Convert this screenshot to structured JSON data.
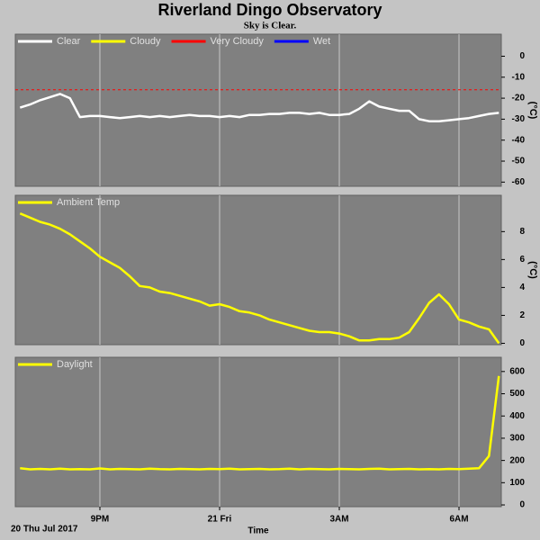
{
  "title": "Riverland Dingo Observatory",
  "subtitle": "Sky is Clear.",
  "chart_data": [
    {
      "type": "line",
      "y_label": "(°C)",
      "legend": "upper left",
      "xlim": [
        18.88,
        31.06
      ],
      "ylim": [
        -62,
        10.5
      ],
      "yticks": [
        0,
        -10,
        -20,
        -30,
        -40,
        -50,
        -60
      ],
      "reference_line": {
        "value": -16,
        "color": "#ff0000"
      },
      "x": [
        19.0,
        19.25,
        19.5,
        19.75,
        20.0,
        20.25,
        20.5,
        20.75,
        21.0,
        21.25,
        21.5,
        21.75,
        22.0,
        22.25,
        22.5,
        22.75,
        23.0,
        23.25,
        23.5,
        23.75,
        24.0,
        24.25,
        24.5,
        24.75,
        25.0,
        25.25,
        25.5,
        25.75,
        26.0,
        26.25,
        26.5,
        26.75,
        27.0,
        27.25,
        27.5,
        27.75,
        28.0,
        28.25,
        28.5,
        28.75,
        29.0,
        29.25,
        29.5,
        29.75,
        30.0,
        30.25,
        30.5,
        30.75,
        31.0
      ],
      "series": [
        {
          "name": "Clear",
          "color": "#ffffff",
          "values": [
            -24.5,
            -23,
            -21,
            -19.5,
            -18,
            -20,
            -29,
            -28.5,
            -28.5,
            -29,
            -29.5,
            -29,
            -28.5,
            -29,
            -28.5,
            -29,
            -28.5,
            -28,
            -28.5,
            -28.5,
            -29,
            -28.5,
            -29,
            -28,
            -28,
            -27.5,
            -27.5,
            -27,
            -27,
            -27.5,
            -27,
            -28,
            -28,
            -27.5,
            -25,
            -21.5,
            -24,
            -25,
            -26,
            -26,
            -30,
            -31,
            -31,
            -30.5,
            -30,
            -29.5,
            -28.5,
            -27.5,
            -27
          ]
        },
        {
          "name": "Cloudy",
          "color": "#ffff00"
        },
        {
          "name": "Very Cloudy",
          "color": "#ff0000"
        },
        {
          "name": "Wet",
          "color": "#0000ff"
        }
      ]
    },
    {
      "type": "line",
      "y_label": "(°C)",
      "legend": "upper left",
      "xlim": [
        18.88,
        31.06
      ],
      "ylim": [
        -0.1,
        10.6
      ],
      "yticks": [
        0,
        2,
        4,
        6,
        8
      ],
      "x": [
        19.0,
        19.25,
        19.5,
        19.75,
        20.0,
        20.25,
        20.5,
        20.75,
        21.0,
        21.25,
        21.5,
        21.75,
        22.0,
        22.25,
        22.5,
        22.75,
        23.0,
        23.25,
        23.5,
        23.75,
        24.0,
        24.25,
        24.5,
        24.75,
        25.0,
        25.25,
        25.5,
        25.75,
        26.0,
        26.25,
        26.5,
        26.75,
        27.0,
        27.25,
        27.5,
        27.75,
        28.0,
        28.25,
        28.5,
        28.75,
        29.0,
        29.25,
        29.5,
        29.75,
        30.0,
        30.25,
        30.5,
        30.75,
        31.0
      ],
      "series": [
        {
          "name": "Ambient Temp",
          "color": "#ffff00",
          "values": [
            9.3,
            9.0,
            8.7,
            8.5,
            8.2,
            7.8,
            7.3,
            6.8,
            6.2,
            5.8,
            5.4,
            4.8,
            4.1,
            4.0,
            3.7,
            3.6,
            3.4,
            3.2,
            3.0,
            2.7,
            2.8,
            2.6,
            2.3,
            2.2,
            2.0,
            1.7,
            1.5,
            1.3,
            1.1,
            0.9,
            0.8,
            0.8,
            0.7,
            0.5,
            0.2,
            0.2,
            0.3,
            0.3,
            0.4,
            0.8,
            1.8,
            2.9,
            3.5,
            2.8,
            1.7,
            1.5,
            1.2,
            1.0,
            0
          ]
        }
      ]
    },
    {
      "type": "line",
      "legend": "upper left",
      "x_label": "Time",
      "date_label": "20 Thu Jul 2017",
      "xlim": [
        18.88,
        31.06
      ],
      "xticks": [
        {
          "value": 21,
          "label": "9PM"
        },
        {
          "value": 24,
          "label": "21 Fri"
        },
        {
          "value": 27,
          "label": "3AM"
        },
        {
          "value": 30,
          "label": "6AM"
        }
      ],
      "ylim": [
        -8,
        664
      ],
      "yticks": [
        0,
        100,
        200,
        300,
        400,
        500,
        600
      ],
      "x": [
        19.0,
        19.25,
        19.5,
        19.75,
        20.0,
        20.25,
        20.5,
        20.75,
        21.0,
        21.25,
        21.5,
        21.75,
        22.0,
        22.25,
        22.5,
        22.75,
        23.0,
        23.25,
        23.5,
        23.75,
        24.0,
        24.25,
        24.5,
        24.75,
        25.0,
        25.25,
        25.5,
        25.75,
        26.0,
        26.25,
        26.5,
        26.75,
        27.0,
        27.25,
        27.5,
        27.75,
        28.0,
        28.25,
        28.5,
        28.75,
        29.0,
        29.25,
        29.5,
        29.75,
        30.0,
        30.25,
        30.5,
        30.75,
        31.0
      ],
      "series": [
        {
          "name": "Daylight",
          "color": "#ffff00",
          "values": [
            165,
            160,
            162,
            160,
            163,
            160,
            161,
            160,
            164,
            160,
            162,
            161,
            160,
            163,
            161,
            160,
            162,
            161,
            160,
            162,
            161,
            163,
            160,
            161,
            162,
            160,
            161,
            163,
            160,
            162,
            161,
            160,
            162,
            161,
            160,
            162,
            163,
            160,
            161,
            162,
            160,
            161,
            160,
            162,
            161,
            163,
            165,
            220,
            580
          ]
        }
      ]
    }
  ]
}
